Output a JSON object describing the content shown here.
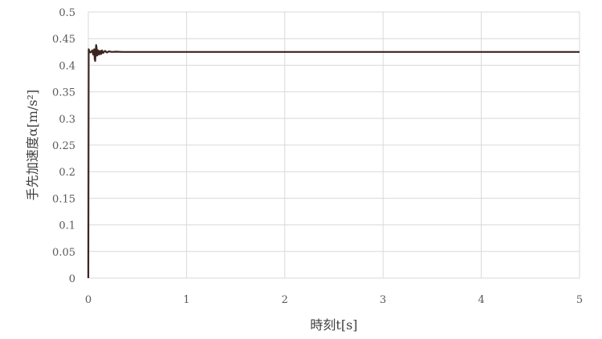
{
  "chart_data": {
    "type": "line",
    "xlabel": "時刻t[s]",
    "ylabel": "手先加速度α[m/s²]",
    "xlim": [
      0,
      5
    ],
    "ylim": [
      0,
      0.5
    ],
    "x_ticks": [
      0,
      1,
      2,
      3,
      4,
      5
    ],
    "y_ticks": [
      0,
      0.05,
      0.1,
      0.15,
      0.2,
      0.25,
      0.3,
      0.35,
      0.4,
      0.45,
      0.5
    ],
    "x_tick_labels": [
      "0",
      "1",
      "2",
      "3",
      "4",
      "5"
    ],
    "y_tick_labels": [
      "0",
      "0.05",
      "0.1",
      "0.15",
      "0.2",
      "0.25",
      "0.3",
      "0.35",
      "0.4",
      "0.45",
      "0.5"
    ],
    "grid": true,
    "legend": "none",
    "series": [
      {
        "color": "#3b2420",
        "x": [
          0,
          0.004,
          0.012,
          0.02,
          0.03,
          0.04,
          0.05,
          0.06,
          0.065,
          0.07,
          0.075,
          0.08,
          0.085,
          0.09,
          0.1,
          0.11,
          0.12,
          0.13,
          0.14,
          0.15,
          0.17,
          0.19,
          0.21,
          0.24,
          0.28,
          0.35,
          0.5,
          1,
          2,
          3,
          4,
          5
        ],
        "y": [
          0,
          0.43,
          0.426,
          0.424,
          0.425,
          0.428,
          0.42,
          0.43,
          0.412,
          0.408,
          0.425,
          0.438,
          0.432,
          0.418,
          0.428,
          0.42,
          0.427,
          0.421,
          0.428,
          0.423,
          0.427,
          0.424,
          0.426,
          0.425,
          0.4255,
          0.425,
          0.425,
          0.425,
          0.425,
          0.425,
          0.425,
          0.425
        ]
      }
    ]
  }
}
